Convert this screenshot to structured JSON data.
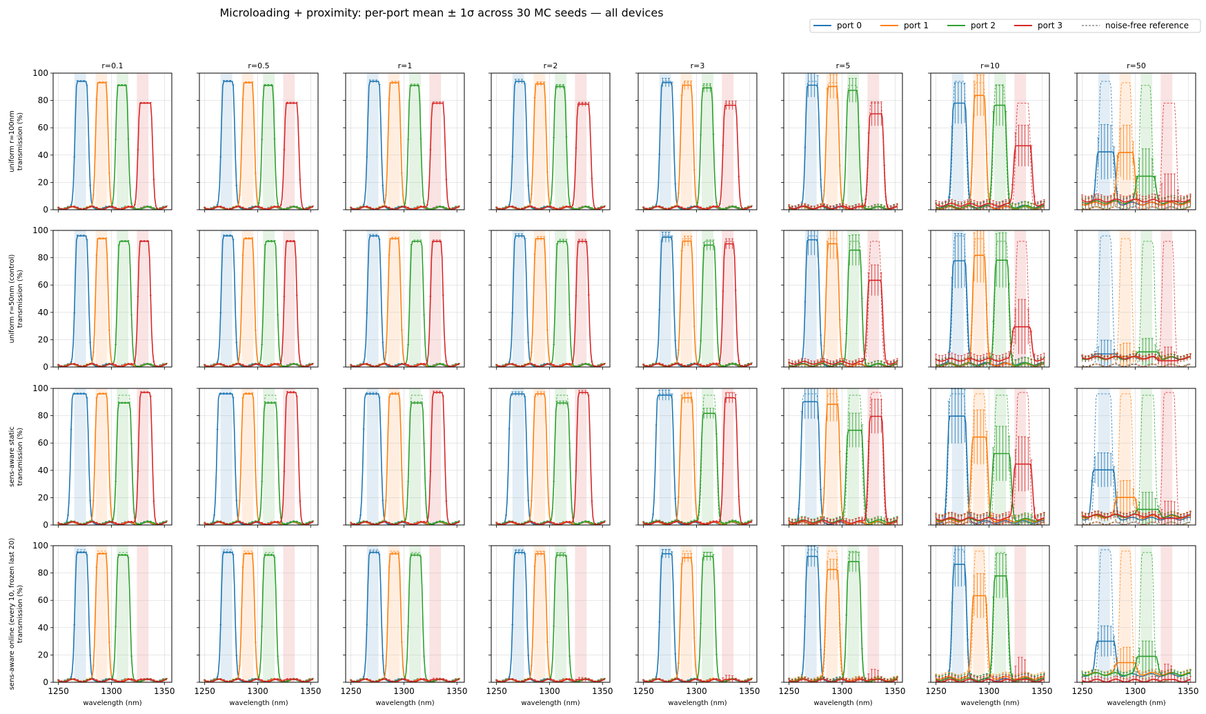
{
  "figure": {
    "title": "Microloading + proximity: per-port mean ± 1σ across 30 MC seeds — all devices"
  },
  "legend": {
    "placement": "top-right",
    "entries": [
      {
        "label": "port 0",
        "color": "#1f77b4",
        "style": "solid"
      },
      {
        "label": "port 1",
        "color": "#ff7f0e",
        "style": "solid"
      },
      {
        "label": "port 2",
        "color": "#2ca02c",
        "style": "solid"
      },
      {
        "label": "port 3",
        "color": "#d62728",
        "style": "solid"
      },
      {
        "label": "noise-free reference",
        "color": "#555555",
        "style": "dashed"
      }
    ]
  },
  "chart_data": {
    "type": "line",
    "grid": true,
    "xlim": [
      1245,
      1357
    ],
    "ylim": [
      0,
      100
    ],
    "xticks": [
      1250,
      1300,
      1350
    ],
    "yticks": [
      0,
      20,
      40,
      60,
      80,
      100
    ],
    "xlabel": "wavelength (nm)",
    "columns": [
      "r=0.1",
      "r=0.5",
      "r=1",
      "r=2",
      "r=3",
      "r=5",
      "r=10",
      "r=50"
    ],
    "rows": [
      {
        "label": "uniform r=100nm",
        "label2": "transmission (%)"
      },
      {
        "label": "uniform r=50nm (control)",
        "label2": "transmission (%)"
      },
      {
        "label": "sens-aware static",
        "label2": "transmission (%)"
      },
      {
        "label": "sens-aware online (every 10, frozen last 20)",
        "label2": "transmission (%)"
      }
    ],
    "bands": [
      {
        "port": 0,
        "start": 1265,
        "end": 1276
      },
      {
        "port": 1,
        "start": 1285,
        "end": 1296
      },
      {
        "port": 2,
        "start": 1305,
        "end": 1316
      },
      {
        "port": 3,
        "start": 1324,
        "end": 1335
      }
    ],
    "series_colors": [
      "#1f77b4",
      "#ff7f0e",
      "#2ca02c",
      "#d62728"
    ],
    "reference_peaks": [
      [
        {
          "center": 1272,
          "width": 9,
          "peak": 94
        },
        {
          "center": 1291,
          "width": 8,
          "peak": 93
        },
        {
          "center": 1310,
          "width": 8,
          "peak": 91
        },
        {
          "center": 1332,
          "width": 10,
          "peak": 78
        }
      ],
      [
        {
          "center": 1272,
          "width": 9,
          "peak": 96
        },
        {
          "center": 1291,
          "width": 8,
          "peak": 94
        },
        {
          "center": 1312,
          "width": 9,
          "peak": 92
        },
        {
          "center": 1331,
          "width": 8,
          "peak": 92
        }
      ],
      [
        {
          "center": 1270,
          "width": 13,
          "peak": 96
        },
        {
          "center": 1291,
          "width": 9,
          "peak": 96
        },
        {
          "center": 1312,
          "width": 10,
          "peak": 95
        },
        {
          "center": 1332,
          "width": 9,
          "peak": 97
        }
      ],
      [
        {
          "center": 1272,
          "width": 9,
          "peak": 97
        },
        {
          "center": 1291,
          "width": 8,
          "peak": 96
        },
        {
          "center": 1311,
          "width": 9,
          "peak": 95
        },
        {
          "center": 1330,
          "width": 6,
          "peak": 2
        }
      ]
    ],
    "peak_retention": [
      [
        [
          1.0,
          1.0,
          1.0,
          1.0
        ],
        [
          1.0,
          1.0,
          1.0,
          1.0
        ],
        [
          1.0,
          1.0,
          1.0,
          1.0
        ],
        [
          1.0,
          0.99,
          0.99,
          0.99
        ],
        [
          0.99,
          0.98,
          0.98,
          0.98
        ],
        [
          0.97,
          0.97,
          0.96,
          0.9
        ],
        [
          0.83,
          0.9,
          0.84,
          0.6
        ],
        [
          0.45,
          0.45,
          0.27,
          0.08
        ]
      ],
      [
        [
          1.0,
          1.0,
          1.0,
          1.0
        ],
        [
          1.0,
          1.0,
          1.0,
          1.0
        ],
        [
          1.0,
          1.0,
          1.0,
          1.0
        ],
        [
          1.0,
          1.0,
          1.0,
          1.0
        ],
        [
          0.99,
          0.98,
          0.97,
          0.98
        ],
        [
          0.97,
          0.96,
          0.93,
          0.69
        ],
        [
          0.81,
          0.87,
          0.85,
          0.32
        ],
        [
          0.1,
          0.08,
          0.12,
          0.05
        ]
      ],
      [
        [
          1.0,
          1.0,
          0.94,
          1.0
        ],
        [
          1.0,
          1.0,
          0.94,
          1.0
        ],
        [
          1.0,
          1.0,
          0.94,
          1.0
        ],
        [
          1.0,
          1.0,
          0.94,
          1.0
        ],
        [
          0.99,
          0.97,
          0.86,
          0.96
        ],
        [
          0.94,
          0.92,
          0.73,
          0.82
        ],
        [
          0.83,
          0.67,
          0.55,
          0.46
        ],
        [
          0.42,
          0.21,
          0.12,
          0.05
        ]
      ],
      [
        [
          0.98,
          0.98,
          0.98,
          1.0
        ],
        [
          0.98,
          0.98,
          0.98,
          1.0
        ],
        [
          0.98,
          0.98,
          0.98,
          1.0
        ],
        [
          0.98,
          0.98,
          0.98,
          1.0
        ],
        [
          0.97,
          0.95,
          0.97,
          1.0
        ],
        [
          0.95,
          0.86,
          0.93,
          1.0
        ],
        [
          0.89,
          0.66,
          0.82,
          1.0
        ],
        [
          0.31,
          0.15,
          0.2,
          1.0
        ]
      ]
    ],
    "spread_sigma": [
      [
        0.3,
        0.6,
        0.8,
        1.2,
        2.5,
        7,
        12,
        16
      ],
      [
        0.3,
        0.6,
        0.8,
        1.2,
        3.0,
        9,
        16,
        8
      ],
      [
        0.3,
        0.6,
        0.8,
        1.2,
        3.0,
        10,
        16,
        10
      ],
      [
        0.3,
        0.6,
        0.8,
        1.2,
        2.5,
        6,
        13,
        9
      ]
    ]
  }
}
